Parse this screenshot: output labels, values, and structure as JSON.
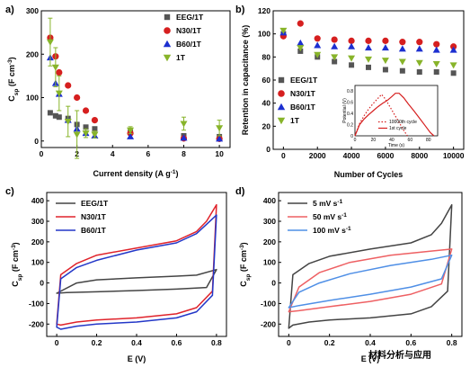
{
  "watermark": "材料分析与应用",
  "colors": {
    "gray": "#555555",
    "red": "#d61f1f",
    "blue": "#1c2fd0",
    "olive": "#88b42a",
    "cv_dark": "#444444",
    "cv_red": "#e0232b",
    "cv_blue": "#2337c8",
    "cv_b_red": "#ee6063",
    "cv_b_blue": "#4f8fe6"
  },
  "chart_data": [
    {
      "panel": "a)",
      "type": "scatter",
      "ylabel": "C",
      "ylabel_sub": "sp",
      "ylabel_unit": "(F cm",
      "ylabel_unit_sup": "-3",
      "ylabel_unit_close": ")",
      "xlabel": "Current density (A g",
      "xlabel_sup": "-1",
      "xlabel_close": ")",
      "xlim": [
        0,
        10.6
      ],
      "ylim": [
        -15,
        300
      ],
      "xticks": [
        0,
        2,
        4,
        6,
        8,
        10
      ],
      "yticks": [
        0,
        100,
        200,
        300
      ],
      "legend_position": "top-right",
      "series": [
        {
          "name": "EEG/1T",
          "color": "gray",
          "marker": "square",
          "x": [
            0.5,
            0.8,
            1,
            1.5,
            2,
            2.5,
            3,
            5,
            8,
            10
          ],
          "y": [
            65,
            58,
            55,
            52,
            38,
            32,
            28,
            20,
            12,
            10
          ]
        },
        {
          "name": "N30/1T",
          "color": "red",
          "marker": "circle",
          "x": [
            0.5,
            0.8,
            1,
            1.5,
            2,
            2.5,
            3,
            5,
            8,
            10
          ],
          "y": [
            238,
            195,
            158,
            128,
            100,
            70,
            48,
            18,
            6,
            5
          ]
        },
        {
          "name": "B60/1T",
          "color": "blue",
          "marker": "triangle-up",
          "x": [
            0.5,
            0.8,
            1,
            1.5,
            2,
            2.5,
            3,
            5,
            8,
            10
          ],
          "y": [
            192,
            133,
            108,
            48,
            28,
            18,
            12,
            10,
            7,
            5
          ]
        },
        {
          "name": "1T",
          "color": "olive",
          "marker": "triangle-down",
          "x": [
            0.5,
            0.8,
            1,
            1.5,
            2,
            2.5,
            3,
            5,
            8,
            10
          ],
          "y": [
            228,
            170,
            110,
            45,
            15,
            18,
            15,
            25,
            40,
            30
          ],
          "err": [
            55,
            45,
            40,
            35,
            55,
            10,
            8,
            8,
            15,
            18
          ]
        }
      ]
    },
    {
      "panel": "b)",
      "type": "scatter",
      "ylabel": "Retention in capacitance (%)",
      "xlabel": "Number of Cycles",
      "xlim": [
        -600,
        10600
      ],
      "ylim": [
        0,
        120
      ],
      "xticks": [
        0,
        2000,
        4000,
        6000,
        8000,
        10000
      ],
      "yticks": [
        0,
        20,
        40,
        60,
        80,
        100,
        120
      ],
      "legend_position": "middle-left",
      "series": [
        {
          "name": "EEG/1T",
          "color": "gray",
          "marker": "square",
          "x": [
            0,
            1000,
            2000,
            3000,
            4000,
            5000,
            6000,
            7000,
            8000,
            9000,
            10000
          ],
          "y": [
            100,
            85,
            80,
            76,
            73,
            71,
            69,
            68,
            67,
            67,
            66
          ]
        },
        {
          "name": "N30/1T",
          "color": "red",
          "marker": "circle",
          "x": [
            0,
            1000,
            2000,
            3000,
            4000,
            5000,
            6000,
            7000,
            8000,
            9000,
            10000
          ],
          "y": [
            98,
            109,
            96,
            95,
            94,
            94,
            94,
            93,
            93,
            91,
            89
          ]
        },
        {
          "name": "B60/1T",
          "color": "blue",
          "marker": "triangle-up",
          "x": [
            0,
            1000,
            2000,
            3000,
            4000,
            5000,
            6000,
            7000,
            8000,
            9000,
            10000
          ],
          "y": [
            101,
            92,
            90,
            89,
            89,
            88,
            88,
            87,
            87,
            86,
            86
          ]
        },
        {
          "name": "1T",
          "color": "olive",
          "marker": "triangle-down",
          "x": [
            0,
            1000,
            2000,
            3000,
            4000,
            5000,
            6000,
            7000,
            8000,
            9000,
            10000
          ],
          "y": [
            103,
            88,
            82,
            80,
            79,
            78,
            77,
            76,
            75,
            74,
            73
          ]
        }
      ],
      "inset": {
        "type": "line",
        "xlabel": "Time (s)",
        "ylabel": "Potential (V)",
        "xlim": [
          0,
          90
        ],
        "ylim": [
          0,
          0.9
        ],
        "xticks": [
          0,
          20,
          40,
          60,
          80
        ],
        "yticks": [
          0,
          0.2,
          0.4,
          0.6,
          0.8
        ],
        "legend_position": "bottom-right",
        "series": [
          {
            "name": "10000th cycle",
            "style": "dotted",
            "color": "red",
            "x": [
              0,
              5,
              10,
              15,
              20,
              25,
              29,
              33,
              38,
              43,
              48,
              53,
              57
            ],
            "y": [
              0,
              0.22,
              0.36,
              0.48,
              0.58,
              0.67,
              0.74,
              0.66,
              0.52,
              0.38,
              0.24,
              0.1,
              0
            ]
          },
          {
            "name": "1st cycle",
            "style": "solid",
            "color": "red",
            "x": [
              0,
              5,
              10,
              15,
              20,
              25,
              30,
              35,
              40,
              44,
              48,
              53,
              58,
              64,
              70,
              76,
              82,
              86
            ],
            "y": [
              0,
              0.2,
              0.3,
              0.38,
              0.45,
              0.52,
              0.58,
              0.63,
              0.7,
              0.76,
              0.76,
              0.68,
              0.57,
              0.45,
              0.32,
              0.19,
              0.06,
              0
            ]
          }
        ]
      }
    },
    {
      "panel": "c)",
      "type": "line",
      "ylabel": "C",
      "ylabel_sub": "sp",
      "ylabel_unit": "(F cm",
      "ylabel_unit_sup": "-3",
      "ylabel_unit_close": ")",
      "xlabel": "E (V)",
      "xlim": [
        -0.05,
        0.85
      ],
      "ylim": [
        -260,
        440
      ],
      "xticks": [
        0.0,
        0.2,
        0.4,
        0.6,
        0.8
      ],
      "yticks": [
        -200,
        -100,
        0,
        100,
        200,
        300,
        400
      ],
      "legend_position": "top-left",
      "series": [
        {
          "name": "EEG/1T",
          "color": "cv_dark",
          "x": [
            0.0,
            0.1,
            0.2,
            0.4,
            0.6,
            0.7,
            0.8,
            0.75,
            0.6,
            0.4,
            0.2,
            0.05,
            0.0
          ],
          "y": [
            -50,
            0,
            15,
            25,
            33,
            38,
            65,
            -22,
            -30,
            -37,
            -43,
            -47,
            -50
          ]
        },
        {
          "name": "N30/1T",
          "color": "cv_red",
          "x": [
            0.0,
            0.02,
            0.1,
            0.2,
            0.4,
            0.6,
            0.7,
            0.75,
            0.8,
            0.78,
            0.7,
            0.6,
            0.4,
            0.2,
            0.1,
            0.02,
            0.0
          ],
          "y": [
            -200,
            40,
            95,
            135,
            170,
            205,
            250,
            300,
            380,
            -40,
            -120,
            -150,
            -170,
            -180,
            -190,
            -205,
            -200
          ]
        },
        {
          "name": "B60/1T",
          "color": "cv_blue",
          "x": [
            0.0,
            0.02,
            0.1,
            0.2,
            0.4,
            0.6,
            0.7,
            0.75,
            0.8,
            0.78,
            0.7,
            0.6,
            0.4,
            0.2,
            0.1,
            0.02,
            0.0
          ],
          "y": [
            -215,
            20,
            75,
            110,
            160,
            195,
            240,
            285,
            330,
            -60,
            -140,
            -170,
            -190,
            -200,
            -210,
            -225,
            -215
          ]
        }
      ]
    },
    {
      "panel": "d)",
      "type": "line",
      "ylabel": "C",
      "ylabel_sub": "sp",
      "ylabel_unit": "(F cm",
      "ylabel_unit_sup": "-3",
      "ylabel_unit_close": ")",
      "xlabel": "E (V)",
      "xlim": [
        -0.05,
        0.85
      ],
      "ylim": [
        -260,
        440
      ],
      "xticks": [
        0.0,
        0.2,
        0.4,
        0.6,
        0.8
      ],
      "yticks": [
        -200,
        -100,
        0,
        100,
        200,
        300,
        400
      ],
      "legend_position": "top-left",
      "series": [
        {
          "name": "5 mV s",
          "name_sup": "-1",
          "color": "cv_dark",
          "x": [
            0.0,
            0.02,
            0.1,
            0.2,
            0.4,
            0.6,
            0.7,
            0.75,
            0.8,
            0.78,
            0.7,
            0.6,
            0.4,
            0.2,
            0.1,
            0.02,
            0.0
          ],
          "y": [
            -220,
            40,
            95,
            130,
            165,
            195,
            235,
            290,
            380,
            -40,
            -115,
            -150,
            -170,
            -180,
            -190,
            -205,
            -220
          ]
        },
        {
          "name": "50 mV s",
          "name_sup": "-1",
          "color": "cv_b_red",
          "x": [
            0.0,
            0.05,
            0.15,
            0.3,
            0.5,
            0.7,
            0.8,
            0.75,
            0.6,
            0.4,
            0.2,
            0.05,
            0.0
          ],
          "y": [
            -140,
            -20,
            50,
            100,
            135,
            155,
            165,
            -5,
            -55,
            -90,
            -115,
            -135,
            -140
          ]
        },
        {
          "name": "100 mV s",
          "name_sup": "-1",
          "color": "cv_b_blue",
          "x": [
            0.0,
            0.05,
            0.15,
            0.3,
            0.5,
            0.7,
            0.8,
            0.75,
            0.6,
            0.4,
            0.2,
            0.05,
            0.0
          ],
          "y": [
            -120,
            -45,
            0,
            45,
            85,
            115,
            135,
            20,
            -20,
            -55,
            -85,
            -110,
            -120
          ]
        }
      ]
    }
  ]
}
